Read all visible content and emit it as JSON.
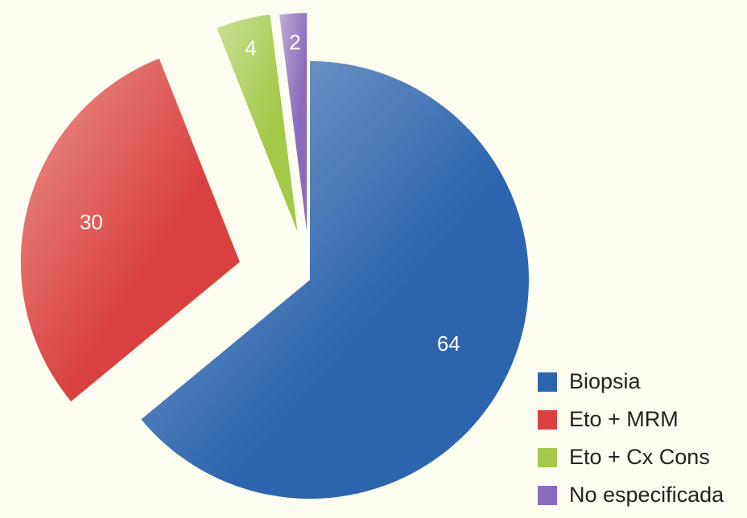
{
  "chart_data": {
    "type": "pie",
    "categories": [
      "Biopsia",
      "Eto + MRM",
      "Eto + Cx Cons",
      "No especificada"
    ],
    "values": [
      64,
      30,
      4,
      2
    ],
    "colors": [
      "#2c64ae",
      "#d9403f",
      "#a3c84a",
      "#8a6bbb"
    ],
    "legend": "bottom-right"
  }
}
